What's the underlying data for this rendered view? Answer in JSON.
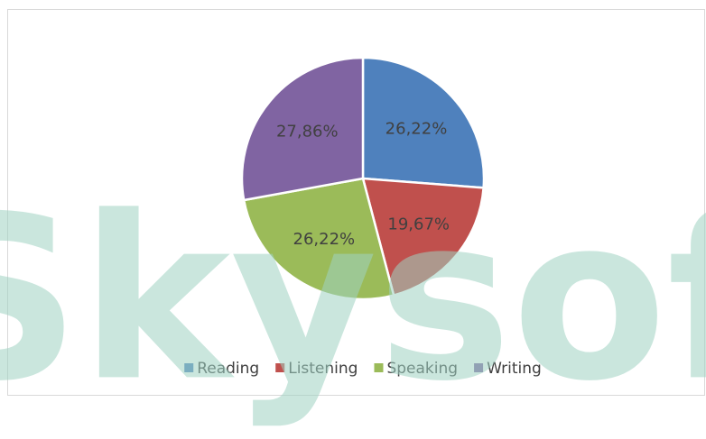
{
  "chart_data": {
    "type": "pie",
    "categories": [
      "Reading",
      "Listening",
      "Speaking",
      "Writing"
    ],
    "values": [
      26.22,
      19.67,
      26.22,
      27.86
    ],
    "value_labels": [
      "26,22%",
      "19,67%",
      "26,22%",
      "27,86%"
    ],
    "colors": [
      "#4f81bd",
      "#c0504d",
      "#9bbb59",
      "#8064a2"
    ],
    "legend": "bottom",
    "watermark": "iSkysoft"
  }
}
